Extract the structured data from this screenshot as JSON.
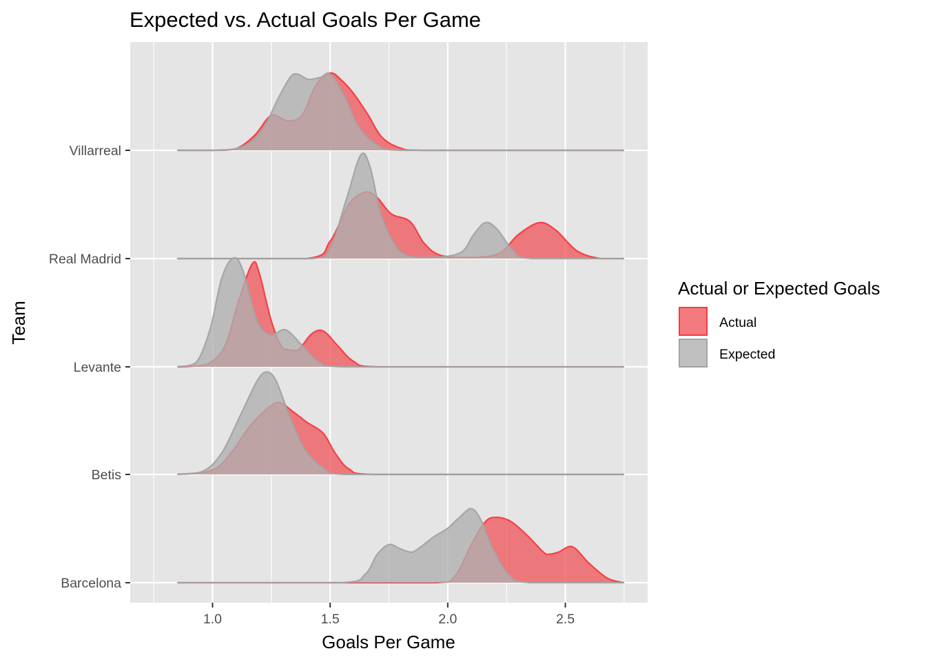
{
  "chart_data": {
    "type": "ridgeline",
    "title": "Expected vs. Actual Goals Per Game",
    "xlabel": "Goals Per Game",
    "ylabel": "Team",
    "xlim": [
      0.65,
      2.85
    ],
    "x_ticks": [
      "1.0",
      "1.5",
      "2.0",
      "2.5"
    ],
    "x_tick_values": [
      1.0,
      1.5,
      2.0,
      2.5
    ],
    "density_range": [
      0.85,
      2.75
    ],
    "grid": true,
    "legend_position": "right",
    "legend": {
      "title": "Actual or Expected Goals",
      "entries": [
        {
          "label": "Actual",
          "color": "#f8766d"
        },
        {
          "label": "Expected",
          "color": "#b3b3b3"
        }
      ]
    },
    "colors": {
      "actual_fill": "#f05a5f",
      "actual_line": "#f8393f",
      "expected_fill": "#b0b0b0",
      "expected_line": "#a3a3a3",
      "panel": "#e5e5e5",
      "grid": "#ffffff"
    },
    "categories": [
      "Villarreal",
      "Real Madrid",
      "Levante",
      "Betis",
      "Barcelona"
    ],
    "series": [
      {
        "team": "Villarreal",
        "actual": [
          [
            0.85,
            0
          ],
          [
            1.0,
            0
          ],
          [
            1.1,
            0.015
          ],
          [
            1.18,
            0.14
          ],
          [
            1.25,
            0.32
          ],
          [
            1.32,
            0.27
          ],
          [
            1.38,
            0.32
          ],
          [
            1.44,
            0.6
          ],
          [
            1.5,
            0.71
          ],
          [
            1.55,
            0.64
          ],
          [
            1.6,
            0.52
          ],
          [
            1.66,
            0.33
          ],
          [
            1.72,
            0.12
          ],
          [
            1.8,
            0.02
          ],
          [
            1.9,
            0
          ],
          [
            2.75,
            0
          ]
        ],
        "expected": [
          [
            0.85,
            0
          ],
          [
            1.05,
            0
          ],
          [
            1.15,
            0.06
          ],
          [
            1.22,
            0.22
          ],
          [
            1.28,
            0.48
          ],
          [
            1.33,
            0.67
          ],
          [
            1.36,
            0.7
          ],
          [
            1.41,
            0.65
          ],
          [
            1.46,
            0.67
          ],
          [
            1.5,
            0.7
          ],
          [
            1.56,
            0.5
          ],
          [
            1.62,
            0.22
          ],
          [
            1.7,
            0.05
          ],
          [
            1.8,
            0
          ],
          [
            2.75,
            0
          ]
        ]
      },
      {
        "team": "Real Madrid",
        "actual": [
          [
            0.85,
            0
          ],
          [
            1.4,
            0
          ],
          [
            1.5,
            0.16
          ],
          [
            1.58,
            0.5
          ],
          [
            1.65,
            0.61
          ],
          [
            1.7,
            0.56
          ],
          [
            1.76,
            0.41
          ],
          [
            1.84,
            0.34
          ],
          [
            1.9,
            0.14
          ],
          [
            1.97,
            0.03
          ],
          [
            2.1,
            0.01
          ],
          [
            2.22,
            0.05
          ],
          [
            2.3,
            0.22
          ],
          [
            2.39,
            0.33
          ],
          [
            2.46,
            0.26
          ],
          [
            2.55,
            0.07
          ],
          [
            2.65,
            0
          ],
          [
            2.75,
            0
          ]
        ],
        "expected": [
          [
            0.85,
            0
          ],
          [
            1.42,
            0
          ],
          [
            1.5,
            0.1
          ],
          [
            1.57,
            0.55
          ],
          [
            1.63,
            0.95
          ],
          [
            1.67,
            0.84
          ],
          [
            1.72,
            0.38
          ],
          [
            1.8,
            0.06
          ],
          [
            1.9,
            0.01
          ],
          [
            2.05,
            0.05
          ],
          [
            2.11,
            0.22
          ],
          [
            2.16,
            0.33
          ],
          [
            2.21,
            0.27
          ],
          [
            2.28,
            0.07
          ],
          [
            2.36,
            0
          ],
          [
            2.75,
            0
          ]
        ]
      },
      {
        "team": "Levante",
        "actual": [
          [
            0.85,
            0
          ],
          [
            0.97,
            0.02
          ],
          [
            1.05,
            0.18
          ],
          [
            1.11,
            0.6
          ],
          [
            1.17,
            0.95
          ],
          [
            1.2,
            0.85
          ],
          [
            1.25,
            0.42
          ],
          [
            1.3,
            0.17
          ],
          [
            1.36,
            0.15
          ],
          [
            1.42,
            0.3
          ],
          [
            1.47,
            0.33
          ],
          [
            1.53,
            0.2
          ],
          [
            1.6,
            0.05
          ],
          [
            1.7,
            0
          ],
          [
            2.75,
            0
          ]
        ],
        "expected": [
          [
            0.85,
            0
          ],
          [
            0.93,
            0.04
          ],
          [
            0.99,
            0.35
          ],
          [
            1.04,
            0.82
          ],
          [
            1.09,
            1.0
          ],
          [
            1.13,
            0.88
          ],
          [
            1.19,
            0.42
          ],
          [
            1.25,
            0.29
          ],
          [
            1.31,
            0.34
          ],
          [
            1.38,
            0.2
          ],
          [
            1.45,
            0.05
          ],
          [
            1.55,
            0
          ],
          [
            2.75,
            0
          ]
        ]
      },
      {
        "team": "Betis",
        "actual": [
          [
            0.85,
            0
          ],
          [
            1.0,
            0.04
          ],
          [
            1.08,
            0.2
          ],
          [
            1.15,
            0.42
          ],
          [
            1.22,
            0.58
          ],
          [
            1.28,
            0.66
          ],
          [
            1.34,
            0.58
          ],
          [
            1.4,
            0.48
          ],
          [
            1.47,
            0.38
          ],
          [
            1.52,
            0.2
          ],
          [
            1.58,
            0.05
          ],
          [
            1.68,
            0
          ],
          [
            2.75,
            0
          ]
        ],
        "expected": [
          [
            0.85,
            0
          ],
          [
            0.96,
            0.03
          ],
          [
            1.04,
            0.2
          ],
          [
            1.12,
            0.55
          ],
          [
            1.19,
            0.86
          ],
          [
            1.23,
            0.94
          ],
          [
            1.27,
            0.86
          ],
          [
            1.33,
            0.52
          ],
          [
            1.39,
            0.24
          ],
          [
            1.47,
            0.06
          ],
          [
            1.56,
            0
          ],
          [
            2.75,
            0
          ]
        ]
      },
      {
        "team": "Barcelona",
        "actual": [
          [
            0.85,
            0
          ],
          [
            1.95,
            0
          ],
          [
            2.03,
            0.06
          ],
          [
            2.1,
            0.35
          ],
          [
            2.16,
            0.56
          ],
          [
            2.21,
            0.6
          ],
          [
            2.27,
            0.56
          ],
          [
            2.34,
            0.43
          ],
          [
            2.42,
            0.26
          ],
          [
            2.47,
            0.28
          ],
          [
            2.53,
            0.33
          ],
          [
            2.6,
            0.18
          ],
          [
            2.68,
            0.04
          ],
          [
            2.75,
            0
          ]
        ],
        "expected": [
          [
            0.85,
            0
          ],
          [
            1.55,
            0
          ],
          [
            1.65,
            0.08
          ],
          [
            1.7,
            0.26
          ],
          [
            1.75,
            0.35
          ],
          [
            1.8,
            0.31
          ],
          [
            1.85,
            0.28
          ],
          [
            1.94,
            0.42
          ],
          [
            2.0,
            0.5
          ],
          [
            2.05,
            0.6
          ],
          [
            2.1,
            0.68
          ],
          [
            2.14,
            0.58
          ],
          [
            2.19,
            0.32
          ],
          [
            2.26,
            0.07
          ],
          [
            2.35,
            0
          ],
          [
            2.75,
            0
          ]
        ]
      }
    ]
  }
}
